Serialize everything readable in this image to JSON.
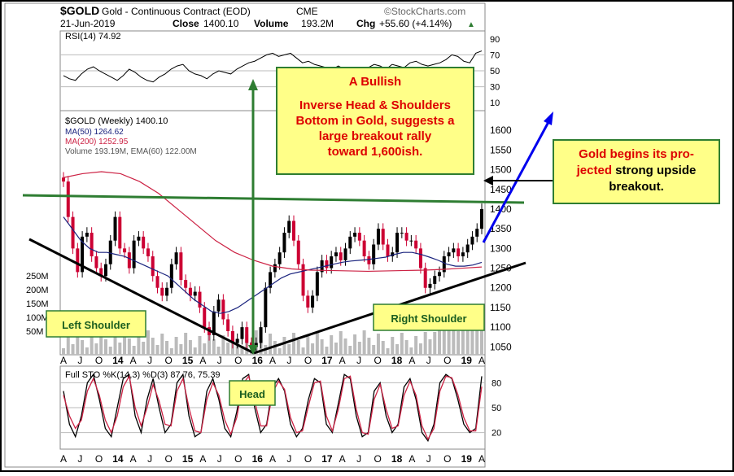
{
  "header": {
    "symbol": "$GOLD",
    "name": "Gold - Continuous Contract (EOD)",
    "exchange": "CME",
    "watermark": "©StockCharts.com",
    "date": "21-Jun-2019",
    "close_label": "Close",
    "close_value": "1400.10",
    "volume_label": "Volume",
    "volume_value": "193.2M",
    "chg_label": "Chg",
    "chg_value": "+55.60 (+4.14%)",
    "chg_arrow": "▲"
  },
  "colors": {
    "price_up": "#000000",
    "price_down": "#cc0033",
    "ma50": "#1a237e",
    "ma200": "#cc2244",
    "volume": "#bbbbbb",
    "neckline": "#2e7d32",
    "projection_arrow": "#0000ee",
    "note_bg": "#ffff88",
    "note_text": "#dd0000",
    "label_text": "#1b5e20"
  },
  "chart_data": [
    {
      "type": "line",
      "title": "RSI(14) 74.92",
      "ylim": [
        0,
        100
      ],
      "ticks": [
        "90",
        "70",
        "50",
        "30",
        "10"
      ],
      "reference_lines": [
        30,
        50,
        70
      ],
      "series": [
        {
          "name": "RSI(14)",
          "values": [
            44,
            40,
            38,
            46,
            52,
            55,
            50,
            46,
            42,
            38,
            44,
            52,
            48,
            42,
            38,
            36,
            42,
            46,
            52,
            56,
            58,
            50,
            46,
            44,
            40,
            46,
            50,
            48,
            46,
            52,
            56,
            60,
            62,
            66,
            70,
            72,
            68,
            70,
            72,
            66,
            60,
            62,
            58,
            56,
            54,
            52,
            56,
            52,
            50,
            48,
            52,
            54,
            58,
            56,
            52,
            58,
            56,
            54,
            60,
            62,
            58,
            56,
            58,
            60,
            64,
            70,
            68,
            62,
            60,
            72,
            74.92
          ]
        }
      ]
    },
    {
      "type": "line",
      "title": "$GOLD (Weekly) 1400.10",
      "ylim": [
        1030,
        1650
      ],
      "ticks": [
        "1600",
        "1550",
        "1500",
        "1450",
        "1400",
        "1350",
        "1300",
        "1250",
        "1200",
        "1150",
        "1100",
        "1050"
      ],
      "x_ticks": [
        "A",
        "J",
        "O",
        "14",
        "A",
        "J",
        "O",
        "15",
        "A",
        "J",
        "O",
        "16",
        "A",
        "J",
        "O",
        "17",
        "A",
        "J",
        "O",
        "18",
        "A",
        "J",
        "O",
        "19",
        "A"
      ],
      "volume_ticks": [
        "250M",
        "200M",
        "150M",
        "100M",
        "50M"
      ],
      "legend": [
        "$GOLD (Weekly) 1400.10",
        "MA(50) 1264.62",
        "MA(200) 1252.95",
        "Volume 193.19M, EMA(60) 122.00M"
      ],
      "series": [
        {
          "name": "$GOLD (Weekly)",
          "values": [
            1470,
            1380,
            1300,
            1240,
            1330,
            1340,
            1280,
            1250,
            1230,
            1260,
            1320,
            1380,
            1300,
            1290,
            1250,
            1320,
            1330,
            1300,
            1280,
            1230,
            1200,
            1180,
            1200,
            1260,
            1290,
            1220,
            1200,
            1180,
            1190,
            1150,
            1100,
            1080,
            1140,
            1170,
            1120,
            1090,
            1060,
            1070,
            1100,
            1060,
            1050,
            1060,
            1100,
            1200,
            1240,
            1260,
            1290,
            1340,
            1370,
            1320,
            1260,
            1180,
            1150,
            1180,
            1240,
            1270,
            1250,
            1280,
            1290,
            1270,
            1300,
            1330,
            1340,
            1320,
            1280,
            1260,
            1310,
            1350,
            1310,
            1280,
            1290,
            1340,
            1340,
            1320,
            1320,
            1300,
            1250,
            1200,
            1210,
            1230,
            1240,
            1280,
            1290,
            1300,
            1280,
            1290,
            1310,
            1330,
            1350,
            1400.1
          ]
        },
        {
          "name": "MA(50)",
          "values": [
            1380,
            1350,
            1320,
            1300,
            1290,
            1290,
            1285,
            1280,
            1270,
            1260,
            1250,
            1240,
            1230,
            1210,
            1190,
            1170,
            1155,
            1140,
            1135,
            1140,
            1150,
            1165,
            1180,
            1195,
            1210,
            1225,
            1235,
            1240,
            1245,
            1250,
            1255,
            1260,
            1265,
            1268,
            1270,
            1272,
            1275,
            1278,
            1285,
            1290,
            1290,
            1285,
            1278,
            1270,
            1260,
            1255,
            1255,
            1258,
            1264.62
          ]
        },
        {
          "name": "MA(200)",
          "values": [
            1480,
            1490,
            1495,
            1490,
            1470,
            1440,
            1400,
            1360,
            1320,
            1290,
            1270,
            1255,
            1248,
            1245,
            1244,
            1243,
            1242,
            1243,
            1244,
            1245,
            1247,
            1250,
            1252.95
          ]
        }
      ],
      "annotations": [
        "Left Shoulder",
        "Head",
        "Right Shoulder"
      ]
    },
    {
      "type": "line",
      "title": "Full STO %K(14,3) %D(3) 87.76, 75.39",
      "ylim": [
        0,
        100
      ],
      "ticks": [
        "80",
        "50",
        "20"
      ],
      "x_ticks": [
        "A",
        "J",
        "O",
        "14",
        "A",
        "J",
        "O",
        "15",
        "A",
        "J",
        "O",
        "16",
        "A",
        "J",
        "O",
        "17",
        "A",
        "J",
        "O",
        "18",
        "A",
        "J",
        "O",
        "19",
        "A"
      ],
      "series": [
        {
          "name": "%K(14,3)",
          "values": [
            70,
            30,
            15,
            40,
            80,
            90,
            60,
            25,
            15,
            50,
            85,
            90,
            40,
            20,
            60,
            85,
            50,
            20,
            30,
            80,
            90,
            40,
            15,
            20,
            70,
            85,
            60,
            25,
            15,
            45,
            85,
            90,
            50,
            20,
            30,
            75,
            85,
            70,
            30,
            15,
            25,
            60,
            85,
            80,
            30,
            20,
            55,
            90,
            85,
            40,
            15,
            20,
            70,
            80,
            40,
            20,
            30,
            75,
            85,
            60,
            20,
            10,
            30,
            80,
            90,
            85,
            60,
            30,
            20,
            25,
            87.76
          ]
        },
        {
          "name": "%D(3)",
          "values": [
            65,
            40,
            25,
            35,
            70,
            85,
            65,
            35,
            20,
            40,
            75,
            88,
            50,
            28,
            50,
            78,
            58,
            30,
            28,
            70,
            85,
            50,
            22,
            20,
            60,
            80,
            65,
            35,
            18,
            38,
            78,
            88,
            58,
            28,
            28,
            68,
            82,
            72,
            38,
            20,
            22,
            52,
            80,
            82,
            40,
            22,
            48,
            85,
            88,
            48,
            20,
            18,
            60,
            78,
            48,
            25,
            28,
            65,
            82,
            65,
            28,
            12,
            25,
            70,
            88,
            86,
            66,
            38,
            22,
            22,
            75.39
          ]
        }
      ]
    }
  ],
  "notes": {
    "main_title": "A Bullish",
    "main_body": "Inverse Head & Shoulders Bottom in Gold, suggests a large breakout rally toward 1,600ish.",
    "breakout_part1": "Gold begins its pro-",
    "breakout_part2": "jected",
    "breakout_part3": "strong upside breakout.",
    "left_shoulder": "Left Shoulder",
    "head": "Head",
    "right_shoulder": "Right Shoulder"
  }
}
